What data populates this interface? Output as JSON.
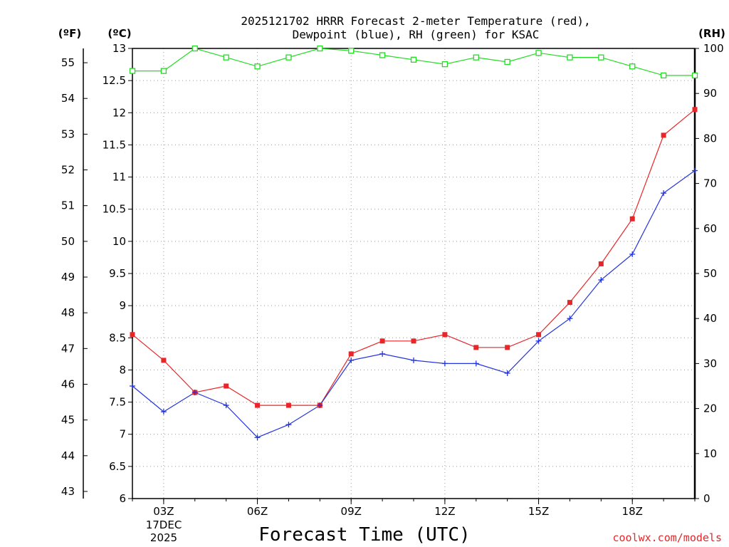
{
  "chart_data": {
    "type": "line",
    "title_line1": "2025121702 HRRR Forecast 2-meter Temperature (red),",
    "title_line2": "Dewpoint (blue), RH (green) for KSAC",
    "axis_units": {
      "fahrenheit": "(ºF)",
      "celsius": "(ºC)",
      "rh": "(RH)"
    },
    "xlabel": "Forecast Time (UTC)",
    "credit": "coolwx.com/models",
    "x_hours": [
      2,
      3,
      4,
      5,
      6,
      7,
      8,
      9,
      10,
      11,
      12,
      13,
      14,
      15,
      16,
      17,
      18,
      19,
      20
    ],
    "xlim": [
      2,
      20
    ],
    "x_ticks": [
      {
        "hour": 3,
        "label": "03Z"
      },
      {
        "hour": 6,
        "label": "06Z"
      },
      {
        "hour": 9,
        "label": "09Z"
      },
      {
        "hour": 12,
        "label": "12Z"
      },
      {
        "hour": 15,
        "label": "15Z"
      },
      {
        "hour": 18,
        "label": "18Z"
      }
    ],
    "date_line1": "17DEC",
    "date_line2": "2025",
    "celsius_axis": {
      "range": [
        6,
        13
      ],
      "ticks": [
        "6",
        "6.5",
        "7",
        "7.5",
        "8",
        "8.5",
        "9",
        "9.5",
        "10",
        "10.5",
        "11",
        "11.5",
        "12",
        "12.5",
        "13"
      ]
    },
    "fahrenheit_axis": {
      "range": [
        42.8,
        55.4
      ],
      "ticks": [
        "43",
        "44",
        "45",
        "46",
        "47",
        "48",
        "49",
        "50",
        "51",
        "52",
        "53",
        "54",
        "55"
      ]
    },
    "rh_axis": {
      "range": [
        0,
        100
      ],
      "ticks": [
        "0",
        "10",
        "20",
        "30",
        "40",
        "50",
        "60",
        "70",
        "80",
        "90",
        "100"
      ]
    },
    "series": [
      {
        "name": "Temperature",
        "unit": "C",
        "color": "#e8262a",
        "marker": "filled-square",
        "values": [
          8.55,
          8.15,
          7.65,
          7.75,
          7.45,
          7.45,
          7.45,
          8.25,
          8.45,
          8.45,
          8.55,
          8.35,
          8.35,
          8.55,
          9.05,
          9.65,
          10.35,
          11.65,
          12.05
        ]
      },
      {
        "name": "Dewpoint",
        "unit": "C",
        "color": "#2233dd",
        "marker": "plus",
        "values": [
          7.75,
          7.35,
          7.65,
          7.45,
          6.95,
          7.15,
          7.45,
          8.15,
          8.25,
          8.15,
          8.1,
          8.1,
          7.95,
          8.45,
          8.8,
          9.4,
          9.8,
          10.75,
          11.1
        ]
      },
      {
        "name": "RH",
        "unit": "%",
        "color": "#22dd22",
        "marker": "open-square",
        "values": [
          95,
          95,
          100,
          98,
          96,
          98,
          100,
          99.5,
          98.5,
          97.5,
          96.5,
          98,
          97,
          99,
          98,
          98,
          96,
          94,
          94
        ]
      }
    ]
  }
}
